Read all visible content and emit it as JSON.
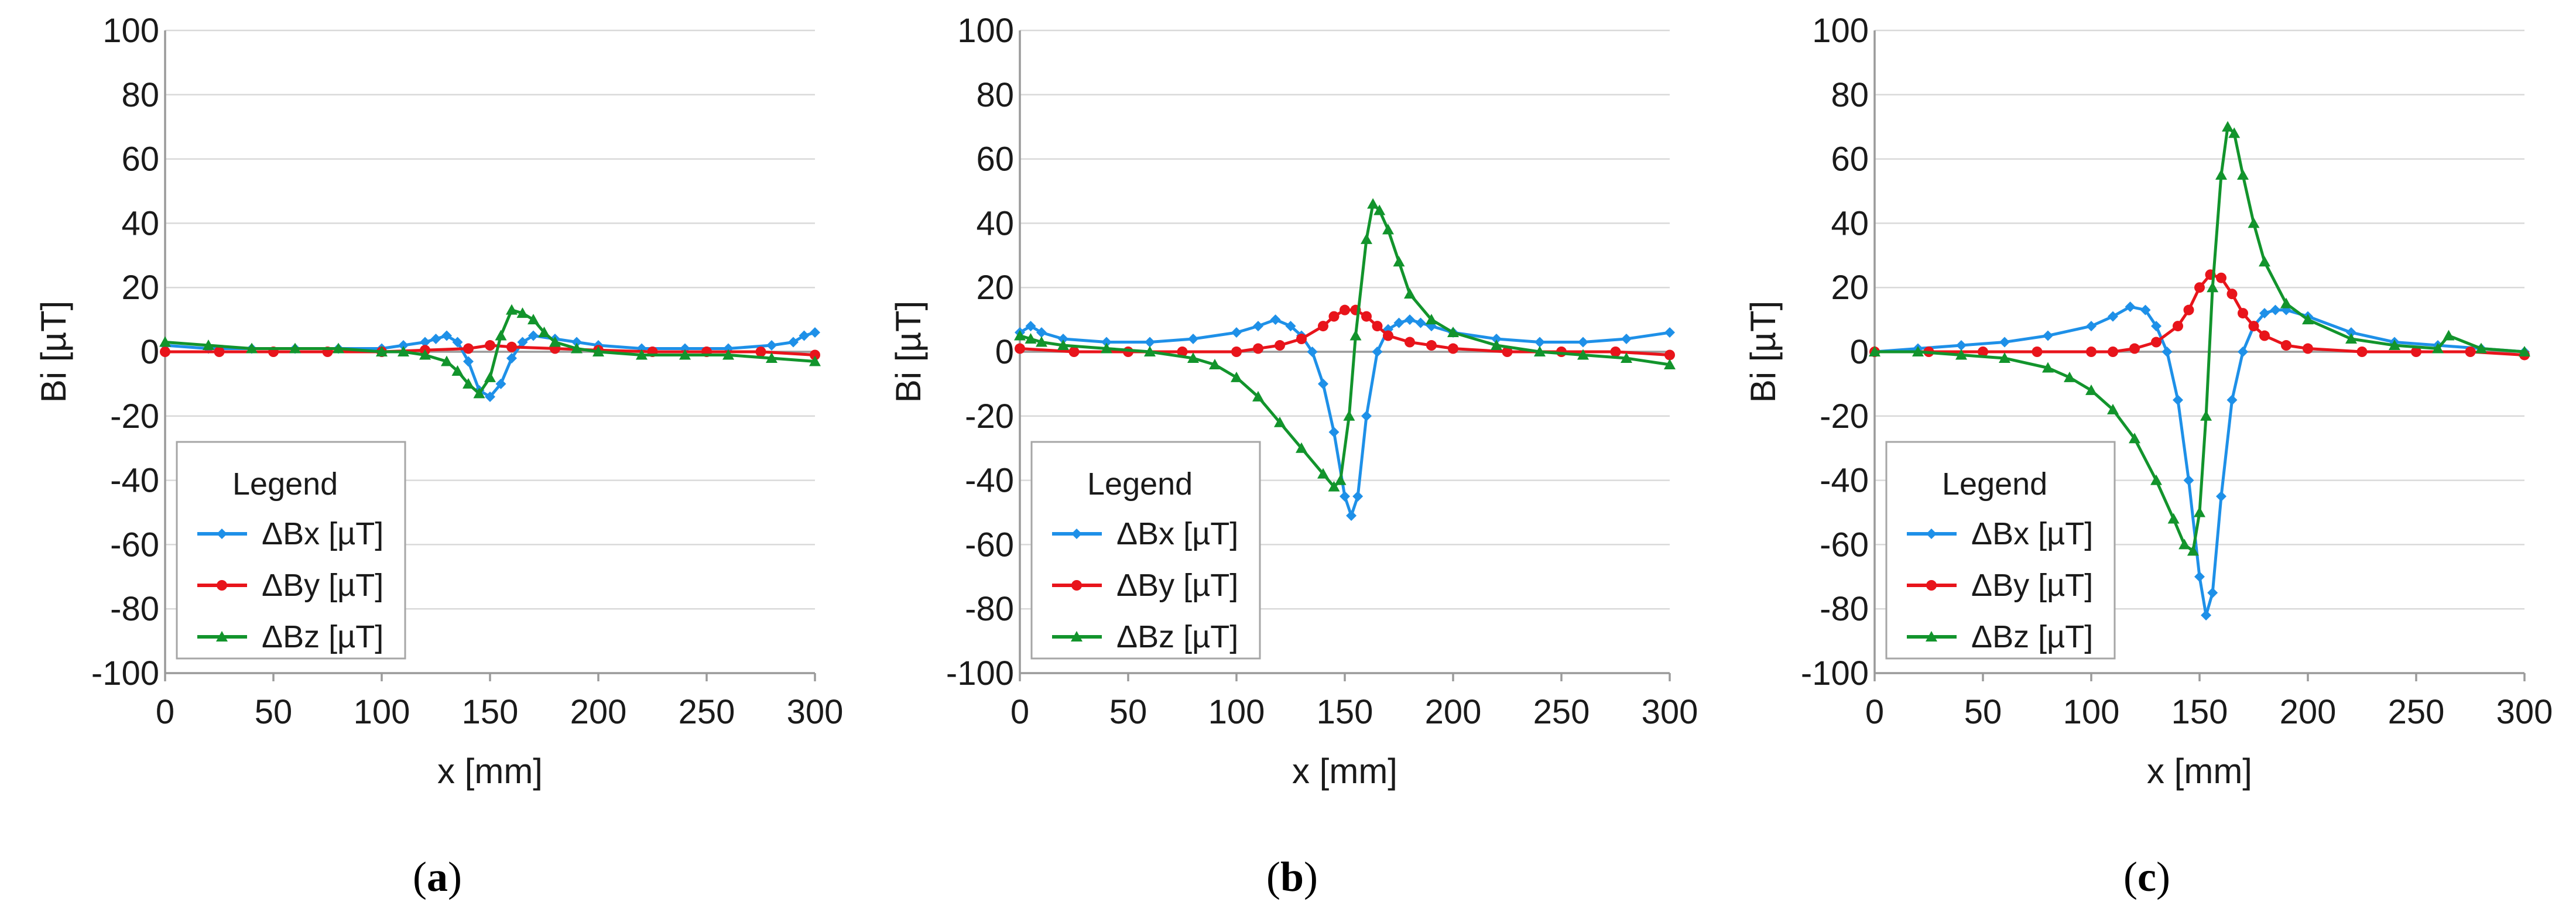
{
  "colors": {
    "dBx": "#1e90e8",
    "dBy": "#e8141b",
    "dBz": "#12942c"
  },
  "chart_data": [
    {
      "type": "line",
      "panel_label": "a",
      "xlabel": "x [mm]",
      "ylabel": "Bi [µT]",
      "xlim": [
        0,
        300
      ],
      "ylim": [
        -100,
        100
      ],
      "xticks": [
        "0",
        "50",
        "100",
        "150",
        "200",
        "250",
        "300"
      ],
      "yticks": [
        "100",
        "80",
        "60",
        "40",
        "20",
        "0",
        "-20",
        "-40",
        "-60",
        "-80",
        "-100"
      ],
      "grid": true,
      "legend": {
        "title": "Legend",
        "position": "lower-left"
      },
      "series": [
        {
          "name": "ΔBx [µT]",
          "color": "#1e90e8",
          "marker": "diamond",
          "x": [
            0,
            20,
            40,
            60,
            80,
            100,
            110,
            120,
            125,
            130,
            135,
            140,
            145,
            150,
            155,
            160,
            165,
            170,
            180,
            190,
            200,
            220,
            240,
            260,
            280,
            290,
            295,
            300
          ],
          "y": [
            2,
            1,
            1,
            1,
            1,
            1,
            2,
            3,
            4,
            5,
            3,
            -3,
            -12,
            -14,
            -10,
            -2,
            3,
            5,
            4,
            3,
            2,
            1,
            1,
            1,
            2,
            3,
            5,
            6
          ]
        },
        {
          "name": "ΔBy [µT]",
          "color": "#e8141b",
          "marker": "circle",
          "x": [
            0,
            25,
            50,
            75,
            100,
            120,
            140,
            150,
            160,
            180,
            200,
            225,
            250,
            275,
            300
          ],
          "y": [
            0,
            0,
            0,
            0,
            0,
            0.5,
            1,
            2,
            1.5,
            1,
            0.5,
            0,
            0,
            0,
            -1
          ]
        },
        {
          "name": "ΔBz [µT]",
          "color": "#12942c",
          "marker": "triangle",
          "x": [
            0,
            20,
            40,
            60,
            80,
            100,
            110,
            120,
            130,
            135,
            140,
            145,
            150,
            155,
            160,
            165,
            170,
            175,
            180,
            190,
            200,
            220,
            240,
            260,
            280,
            300
          ],
          "y": [
            3,
            2,
            1,
            1,
            1,
            0,
            0,
            -1,
            -3,
            -6,
            -10,
            -13,
            -8,
            5,
            13,
            12,
            10,
            6,
            3,
            1,
            0,
            -1,
            -1,
            -1,
            -2,
            -3
          ]
        }
      ]
    },
    {
      "type": "line",
      "panel_label": "b",
      "xlabel": "x [mm]",
      "ylabel": "Bi [µT]",
      "xlim": [
        0,
        300
      ],
      "ylim": [
        -100,
        100
      ],
      "xticks": [
        "0",
        "50",
        "100",
        "150",
        "200",
        "250",
        "300"
      ],
      "yticks": [
        "100",
        "80",
        "60",
        "40",
        "20",
        "0",
        "-20",
        "-40",
        "-60",
        "-80",
        "-100"
      ],
      "grid": true,
      "legend": {
        "title": "Legend",
        "position": "lower-left"
      },
      "series": [
        {
          "name": "ΔBx [µT]",
          "color": "#1e90e8",
          "marker": "diamond",
          "x": [
            0,
            5,
            10,
            20,
            40,
            60,
            80,
            100,
            110,
            118,
            125,
            130,
            135,
            140,
            145,
            150,
            153,
            156,
            160,
            165,
            170,
            175,
            180,
            185,
            190,
            200,
            220,
            240,
            260,
            280,
            300
          ],
          "y": [
            6,
            8,
            6,
            4,
            3,
            3,
            4,
            6,
            8,
            10,
            8,
            5,
            0,
            -10,
            -25,
            -45,
            -51,
            -45,
            -20,
            0,
            7,
            9,
            10,
            9,
            8,
            6,
            4,
            3,
            3,
            4,
            6
          ]
        },
        {
          "name": "ΔBy [µT]",
          "color": "#e8141b",
          "marker": "circle",
          "x": [
            0,
            25,
            50,
            75,
            100,
            110,
            120,
            130,
            140,
            145,
            150,
            155,
            160,
            165,
            170,
            180,
            190,
            200,
            225,
            250,
            275,
            300
          ],
          "y": [
            1,
            0,
            0,
            0,
            0,
            1,
            2,
            4,
            8,
            11,
            13,
            13,
            11,
            8,
            5,
            3,
            2,
            1,
            0,
            0,
            0,
            -1
          ]
        },
        {
          "name": "ΔBz [µT]",
          "color": "#12942c",
          "marker": "triangle",
          "x": [
            0,
            5,
            10,
            20,
            40,
            60,
            80,
            90,
            100,
            110,
            120,
            130,
            140,
            145,
            148,
            152,
            155,
            160,
            163,
            166,
            170,
            175,
            180,
            190,
            200,
            220,
            240,
            260,
            280,
            300
          ],
          "y": [
            5,
            4,
            3,
            2,
            1,
            0,
            -2,
            -4,
            -8,
            -14,
            -22,
            -30,
            -38,
            -42,
            -40,
            -20,
            5,
            35,
            46,
            44,
            38,
            28,
            18,
            10,
            6,
            2,
            0,
            -1,
            -2,
            -4
          ]
        }
      ]
    },
    {
      "type": "line",
      "panel_label": "c",
      "xlabel": "x [mm]",
      "ylabel": "Bi [µT]",
      "xlim": [
        0,
        300
      ],
      "ylim": [
        -100,
        100
      ],
      "xticks": [
        "0",
        "50",
        "100",
        "150",
        "200",
        "250",
        "300"
      ],
      "yticks": [
        "100",
        "80",
        "60",
        "40",
        "20",
        "0",
        "-20",
        "-40",
        "-60",
        "-80",
        "-100"
      ],
      "grid": true,
      "legend": {
        "title": "Legend",
        "position": "lower-left"
      },
      "series": [
        {
          "name": "ΔBx [µT]",
          "color": "#1e90e8",
          "marker": "diamond",
          "x": [
            0,
            20,
            40,
            60,
            80,
            100,
            110,
            118,
            125,
            130,
            135,
            140,
            145,
            150,
            153,
            156,
            160,
            165,
            170,
            175,
            180,
            185,
            190,
            200,
            220,
            240,
            260,
            280,
            300
          ],
          "y": [
            0,
            1,
            2,
            3,
            5,
            8,
            11,
            14,
            13,
            8,
            0,
            -15,
            -40,
            -70,
            -82,
            -75,
            -45,
            -15,
            0,
            8,
            12,
            13,
            13,
            11,
            6,
            3,
            2,
            1,
            0
          ]
        },
        {
          "name": "ΔBy [µT]",
          "color": "#e8141b",
          "marker": "circle",
          "x": [
            0,
            25,
            50,
            75,
            100,
            110,
            120,
            130,
            140,
            145,
            150,
            155,
            160,
            165,
            170,
            175,
            180,
            190,
            200,
            225,
            250,
            275,
            300
          ],
          "y": [
            0,
            0,
            0,
            0,
            0,
            0,
            1,
            3,
            8,
            13,
            20,
            24,
            23,
            18,
            12,
            8,
            5,
            2,
            1,
            0,
            0,
            0,
            -1
          ]
        },
        {
          "name": "ΔBz [µT]",
          "color": "#12942c",
          "marker": "triangle",
          "x": [
            0,
            20,
            40,
            60,
            80,
            90,
            100,
            110,
            120,
            130,
            138,
            143,
            147,
            150,
            153,
            156,
            160,
            163,
            166,
            170,
            175,
            180,
            190,
            200,
            220,
            240,
            260,
            265,
            280,
            300
          ],
          "y": [
            0,
            0,
            -1,
            -2,
            -5,
            -8,
            -12,
            -18,
            -27,
            -40,
            -52,
            -60,
            -62,
            -50,
            -20,
            20,
            55,
            70,
            68,
            55,
            40,
            28,
            15,
            10,
            4,
            2,
            1,
            5,
            1,
            0
          ]
        }
      ]
    }
  ]
}
